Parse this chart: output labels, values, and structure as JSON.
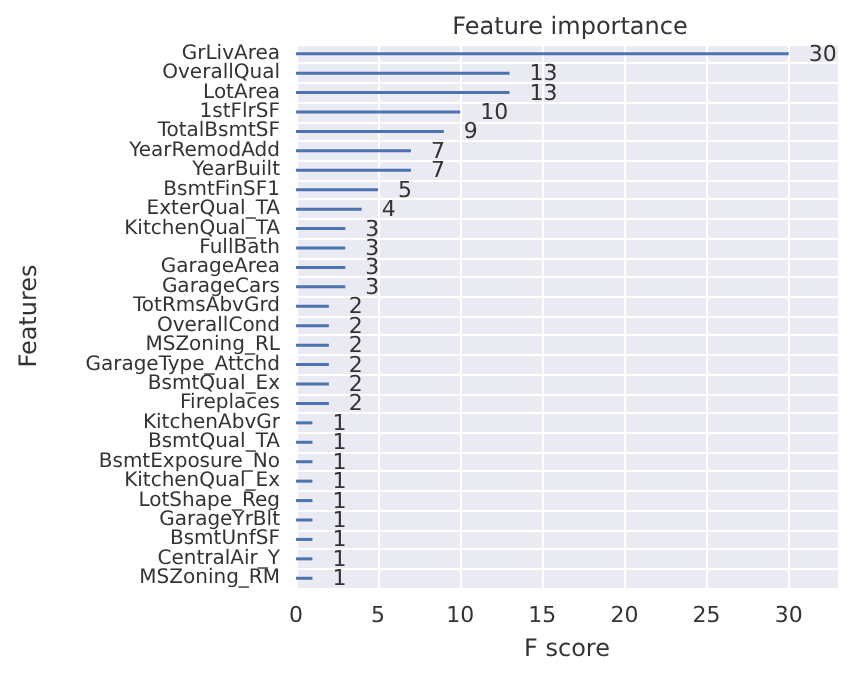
{
  "chart_data": {
    "type": "bar",
    "orientation": "horizontal",
    "title": "Feature importance",
    "xlabel": "F score",
    "ylabel": "Features",
    "categories": [
      "GrLivArea",
      "OverallQual",
      "LotArea",
      "1stFlrSF",
      "TotalBsmtSF",
      "YearRemodAdd",
      "YearBuilt",
      "BsmtFinSF1",
      "ExterQual_TA",
      "KitchenQual_TA",
      "FullBath",
      "GarageArea",
      "GarageCars",
      "TotRmsAbvGrd",
      "OverallCond",
      "MSZoning_RL",
      "GarageType_Attchd",
      "BsmtQual_Ex",
      "Fireplaces",
      "KitchenAbvGr",
      "BsmtQual_TA",
      "BsmtExposure_No",
      "KitchenQual_Ex",
      "LotShape_Reg",
      "GarageYrBlt",
      "BsmtUnfSF",
      "CentralAir_Y",
      "MSZoning_RM"
    ],
    "values": [
      30,
      13,
      13,
      10,
      9,
      7,
      7,
      5,
      4,
      3,
      3,
      3,
      3,
      2,
      2,
      2,
      2,
      2,
      2,
      1,
      1,
      1,
      1,
      1,
      1,
      1,
      1,
      1
    ],
    "color": "#4c72b0",
    "xlim": [
      0,
      33
    ],
    "xticks": [
      0,
      5,
      10,
      15,
      20,
      25,
      30
    ],
    "grid": true,
    "data_labels": true
  }
}
